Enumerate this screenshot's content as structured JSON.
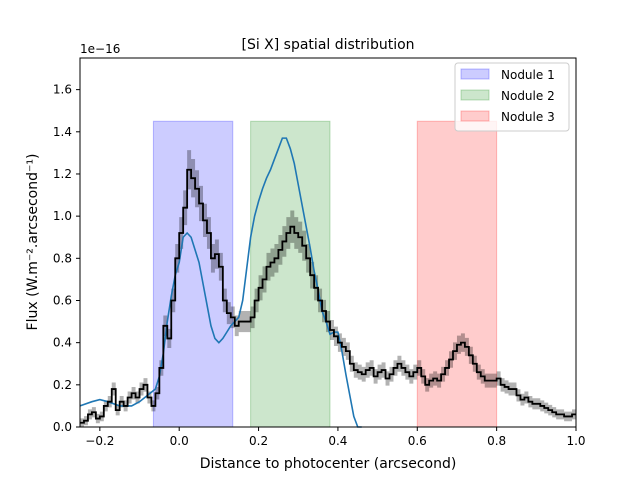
{
  "chart_data": {
    "type": "line",
    "title": "[Si X] spatial distribution",
    "xlabel": "Distance to photocenter (arcsecond)",
    "ylabel": "Flux (W.m⁻².arcsecond⁻¹)",
    "y_scale_label": "1e−16",
    "xlim": [
      -0.25,
      1.0
    ],
    "ylim": [
      0,
      1.75
    ],
    "x_ticks": [
      -0.2,
      0.0,
      0.2,
      0.4,
      0.6,
      0.8,
      1.0
    ],
    "x_tick_labels": [
      "−0.2",
      "0.0",
      "0.2",
      "0.4",
      "0.6",
      "0.8",
      "1.0"
    ],
    "y_ticks": [
      0.0,
      0.2,
      0.4,
      0.6,
      0.8,
      1.0,
      1.2,
      1.4,
      1.6
    ],
    "y_tick_labels": [
      "0.0",
      "0.2",
      "0.4",
      "0.6",
      "0.8",
      "1.0",
      "1.2",
      "1.4",
      "1.6"
    ],
    "grid": false,
    "legend_position": "top-right",
    "regions": [
      {
        "name": "Nodule 1",
        "x0": -0.065,
        "x1": 0.135,
        "ymax": 1.45,
        "color": "#0000ff"
      },
      {
        "name": "Nodule 2",
        "x0": 0.18,
        "x1": 0.38,
        "ymax": 1.45,
        "color": "#008000"
      },
      {
        "name": "Nodule 3",
        "x0": 0.6,
        "x1": 0.8,
        "ymax": 1.45,
        "color": "#ff0000"
      }
    ],
    "series": [
      {
        "style": "blue-line",
        "color": "#1f77b4",
        "x": [
          -0.25,
          -0.22,
          -0.2,
          -0.18,
          -0.15,
          -0.12,
          -0.1,
          -0.08,
          -0.06,
          -0.05,
          -0.04,
          -0.03,
          -0.02,
          -0.01,
          0.0,
          0.01,
          0.02,
          0.03,
          0.04,
          0.05,
          0.06,
          0.07,
          0.08,
          0.09,
          0.1,
          0.11,
          0.12,
          0.13,
          0.14,
          0.15,
          0.16,
          0.17,
          0.18,
          0.19,
          0.2,
          0.21,
          0.22,
          0.23,
          0.24,
          0.25,
          0.26,
          0.27,
          0.28,
          0.29,
          0.3,
          0.31,
          0.32,
          0.33,
          0.34,
          0.35,
          0.36,
          0.37,
          0.38,
          0.39,
          0.4,
          0.41,
          0.42,
          0.43,
          0.44,
          0.45,
          0.46
        ],
        "y": [
          0.1,
          0.12,
          0.13,
          0.12,
          0.1,
          0.1,
          0.12,
          0.15,
          0.18,
          0.24,
          0.35,
          0.5,
          0.62,
          0.72,
          0.78,
          0.9,
          0.92,
          0.9,
          0.84,
          0.78,
          0.68,
          0.58,
          0.48,
          0.42,
          0.4,
          0.42,
          0.45,
          0.48,
          0.5,
          0.52,
          0.6,
          0.75,
          0.9,
          1.0,
          1.07,
          1.13,
          1.18,
          1.22,
          1.27,
          1.32,
          1.37,
          1.37,
          1.32,
          1.25,
          1.15,
          1.05,
          0.95,
          0.85,
          0.74,
          0.65,
          0.55,
          0.5,
          0.44,
          0.45,
          0.45,
          0.36,
          0.25,
          0.15,
          0.05,
          0.0,
          0.0
        ]
      },
      {
        "style": "black-step",
        "color": "#000000",
        "x": [
          -0.25,
          -0.24,
          -0.23,
          -0.22,
          -0.21,
          -0.2,
          -0.19,
          -0.18,
          -0.17,
          -0.16,
          -0.15,
          -0.14,
          -0.13,
          -0.12,
          -0.11,
          -0.1,
          -0.09,
          -0.08,
          -0.07,
          -0.06,
          -0.05,
          -0.04,
          -0.03,
          -0.02,
          -0.01,
          0.0,
          0.01,
          0.02,
          0.03,
          0.04,
          0.05,
          0.06,
          0.07,
          0.08,
          0.09,
          0.1,
          0.11,
          0.12,
          0.13,
          0.14,
          0.15,
          0.16,
          0.17,
          0.18,
          0.19,
          0.2,
          0.21,
          0.22,
          0.23,
          0.24,
          0.25,
          0.26,
          0.27,
          0.28,
          0.29,
          0.3,
          0.31,
          0.32,
          0.33,
          0.34,
          0.35,
          0.36,
          0.37,
          0.38,
          0.39,
          0.4,
          0.41,
          0.42,
          0.43,
          0.44,
          0.45,
          0.46,
          0.47,
          0.48,
          0.49,
          0.5,
          0.51,
          0.52,
          0.53,
          0.54,
          0.55,
          0.56,
          0.57,
          0.58,
          0.59,
          0.6,
          0.61,
          0.62,
          0.63,
          0.64,
          0.65,
          0.66,
          0.67,
          0.68,
          0.69,
          0.7,
          0.71,
          0.72,
          0.73,
          0.74,
          0.75,
          0.76,
          0.77,
          0.78,
          0.79,
          0.8,
          0.81,
          0.82,
          0.83,
          0.84,
          0.85,
          0.86,
          0.87,
          0.88,
          0.89,
          0.9,
          0.91,
          0.92,
          0.93,
          0.94,
          0.95,
          0.96,
          0.97,
          0.98,
          0.99
        ],
        "y": [
          0.02,
          0.03,
          0.06,
          0.07,
          0.04,
          0.05,
          0.1,
          0.12,
          0.18,
          0.08,
          0.12,
          0.1,
          0.14,
          0.16,
          0.14,
          0.18,
          0.2,
          0.14,
          0.1,
          0.16,
          0.28,
          0.48,
          0.42,
          0.6,
          0.8,
          0.92,
          1.04,
          1.22,
          1.18,
          1.13,
          1.06,
          0.98,
          0.92,
          0.8,
          0.82,
          0.76,
          0.6,
          0.54,
          0.52,
          0.48,
          0.5,
          0.5,
          0.5,
          0.52,
          0.6,
          0.66,
          0.7,
          0.76,
          0.78,
          0.8,
          0.84,
          0.88,
          0.92,
          0.95,
          0.92,
          0.9,
          0.86,
          0.8,
          0.72,
          0.66,
          0.6,
          0.55,
          0.5,
          0.46,
          0.43,
          0.4,
          0.38,
          0.36,
          0.3,
          0.27,
          0.26,
          0.25,
          0.27,
          0.28,
          0.24,
          0.26,
          0.27,
          0.23,
          0.25,
          0.28,
          0.3,
          0.28,
          0.26,
          0.24,
          0.26,
          0.28,
          0.24,
          0.2,
          0.22,
          0.23,
          0.22,
          0.25,
          0.28,
          0.32,
          0.36,
          0.39,
          0.4,
          0.38,
          0.34,
          0.3,
          0.26,
          0.24,
          0.22,
          0.22,
          0.22,
          0.23,
          0.2,
          0.19,
          0.18,
          0.18,
          0.15,
          0.13,
          0.14,
          0.12,
          0.11,
          0.11,
          0.1,
          0.09,
          0.08,
          0.07,
          0.06,
          0.06,
          0.05,
          0.05,
          0.06
        ]
      }
    ]
  }
}
